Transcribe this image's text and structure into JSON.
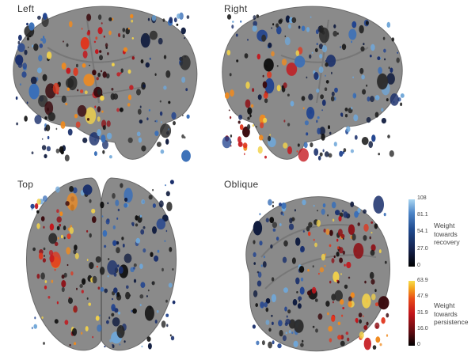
{
  "views": {
    "left": "Left",
    "right": "Right",
    "top": "Top",
    "oblique": "Oblique"
  },
  "legend": {
    "recovery": {
      "title_line1": "Weight",
      "title_line2": "towards",
      "title_line3": "recovery",
      "ticks": [
        "108",
        "81.1",
        "54.1",
        "27.0",
        "0"
      ]
    },
    "persistence": {
      "title_line1": "Weight",
      "title_line2": "towards",
      "title_line3": "persistence",
      "ticks": [
        "63.9",
        "47.9",
        "31.9",
        "16.0",
        "0"
      ]
    }
  },
  "colors": {
    "brain_surface": "#8c8c8c",
    "recovery_low": "#14204a",
    "recovery_high": "#a9d6f1",
    "persistence_low": "#5a0a10",
    "persistence_high": "#f6dd4b"
  }
}
